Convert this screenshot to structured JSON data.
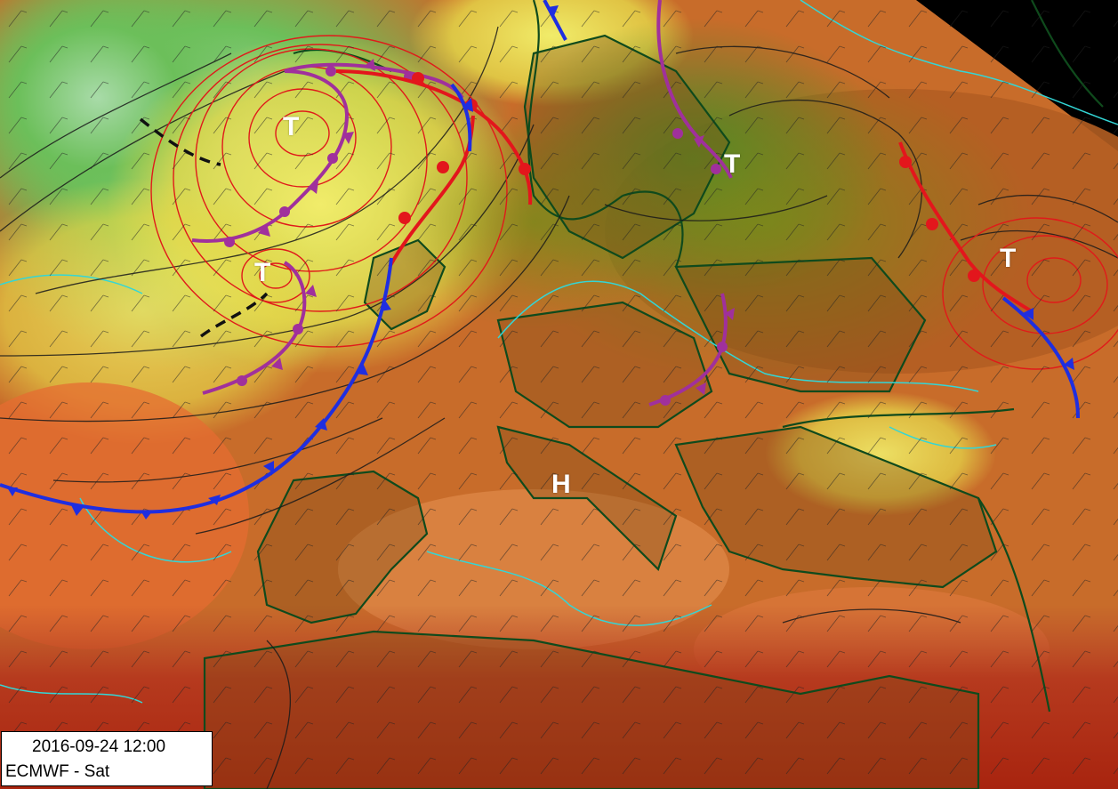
{
  "colors": {
    "warm_front": "#e3161c",
    "cold_front": "#1f2ee0",
    "occluded_front": "#a0309c",
    "trough": "#111111",
    "coastline": "#0f4a1c",
    "isobar": "#1a1a1a",
    "low_isobar": "#e01a1a",
    "jet_contour": "#33d6d6"
  },
  "pressure_systems": [
    {
      "type": "low",
      "text": "T"
    },
    {
      "type": "low",
      "text": "T"
    },
    {
      "type": "low",
      "text": "T"
    },
    {
      "type": "low",
      "text": "T"
    },
    {
      "type": "high",
      "text": "H"
    }
  ],
  "legend": {
    "datetime": "2016-09-24 12:00",
    "model": "ECMWF - Sat"
  }
}
